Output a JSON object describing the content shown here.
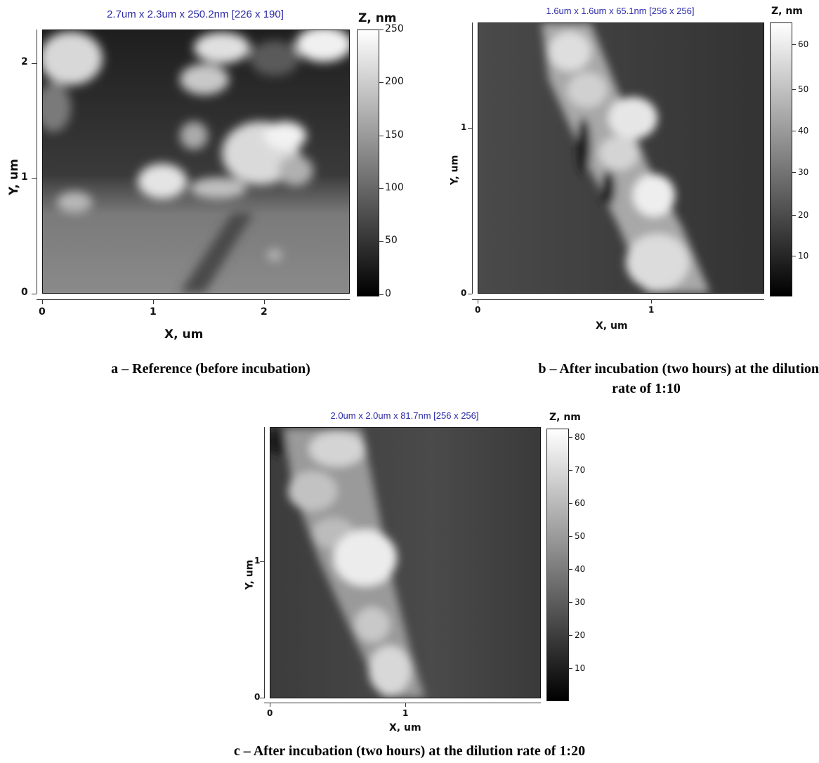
{
  "panel_a": {
    "scan_title": "2.7um x 2.3um x 250.2nm [226 x 190]",
    "x_axis_title": "X, um",
    "y_axis_title": "Y, um",
    "x_ticks": [
      "0",
      "1",
      "2"
    ],
    "y_ticks": [
      "0",
      "1",
      "2"
    ],
    "z_title": "Z, nm",
    "z_ticks": [
      "0",
      "50",
      "100",
      "150",
      "200",
      "250"
    ],
    "caption": "a – Reference (before incubation)"
  },
  "panel_b": {
    "scan_title": "1.6um x 1.6um x 65.1nm [256 x 256]",
    "x_axis_title": "X, um",
    "y_axis_title": "Y, um",
    "x_ticks": [
      "0",
      "1"
    ],
    "y_ticks": [
      "0",
      "1"
    ],
    "z_title": "Z, nm",
    "z_ticks": [
      "10",
      "20",
      "30",
      "40",
      "50",
      "60"
    ],
    "caption_line1": "b – After incubation (two hours) at the dilution",
    "caption_line2": "rate of 1:10"
  },
  "panel_c": {
    "scan_title": "2.0um x 2.0um x 81.7nm [256 x 256]",
    "x_axis_title": "X, um",
    "y_axis_title": "Y, um",
    "x_ticks": [
      "0",
      "1"
    ],
    "y_ticks": [
      "0",
      "1"
    ],
    "z_title": "Z, nm",
    "z_ticks": [
      "10",
      "20",
      "30",
      "40",
      "50",
      "60",
      "70",
      "80"
    ],
    "caption": "c – After incubation (two hours) at the dilution rate of 1:20"
  }
}
